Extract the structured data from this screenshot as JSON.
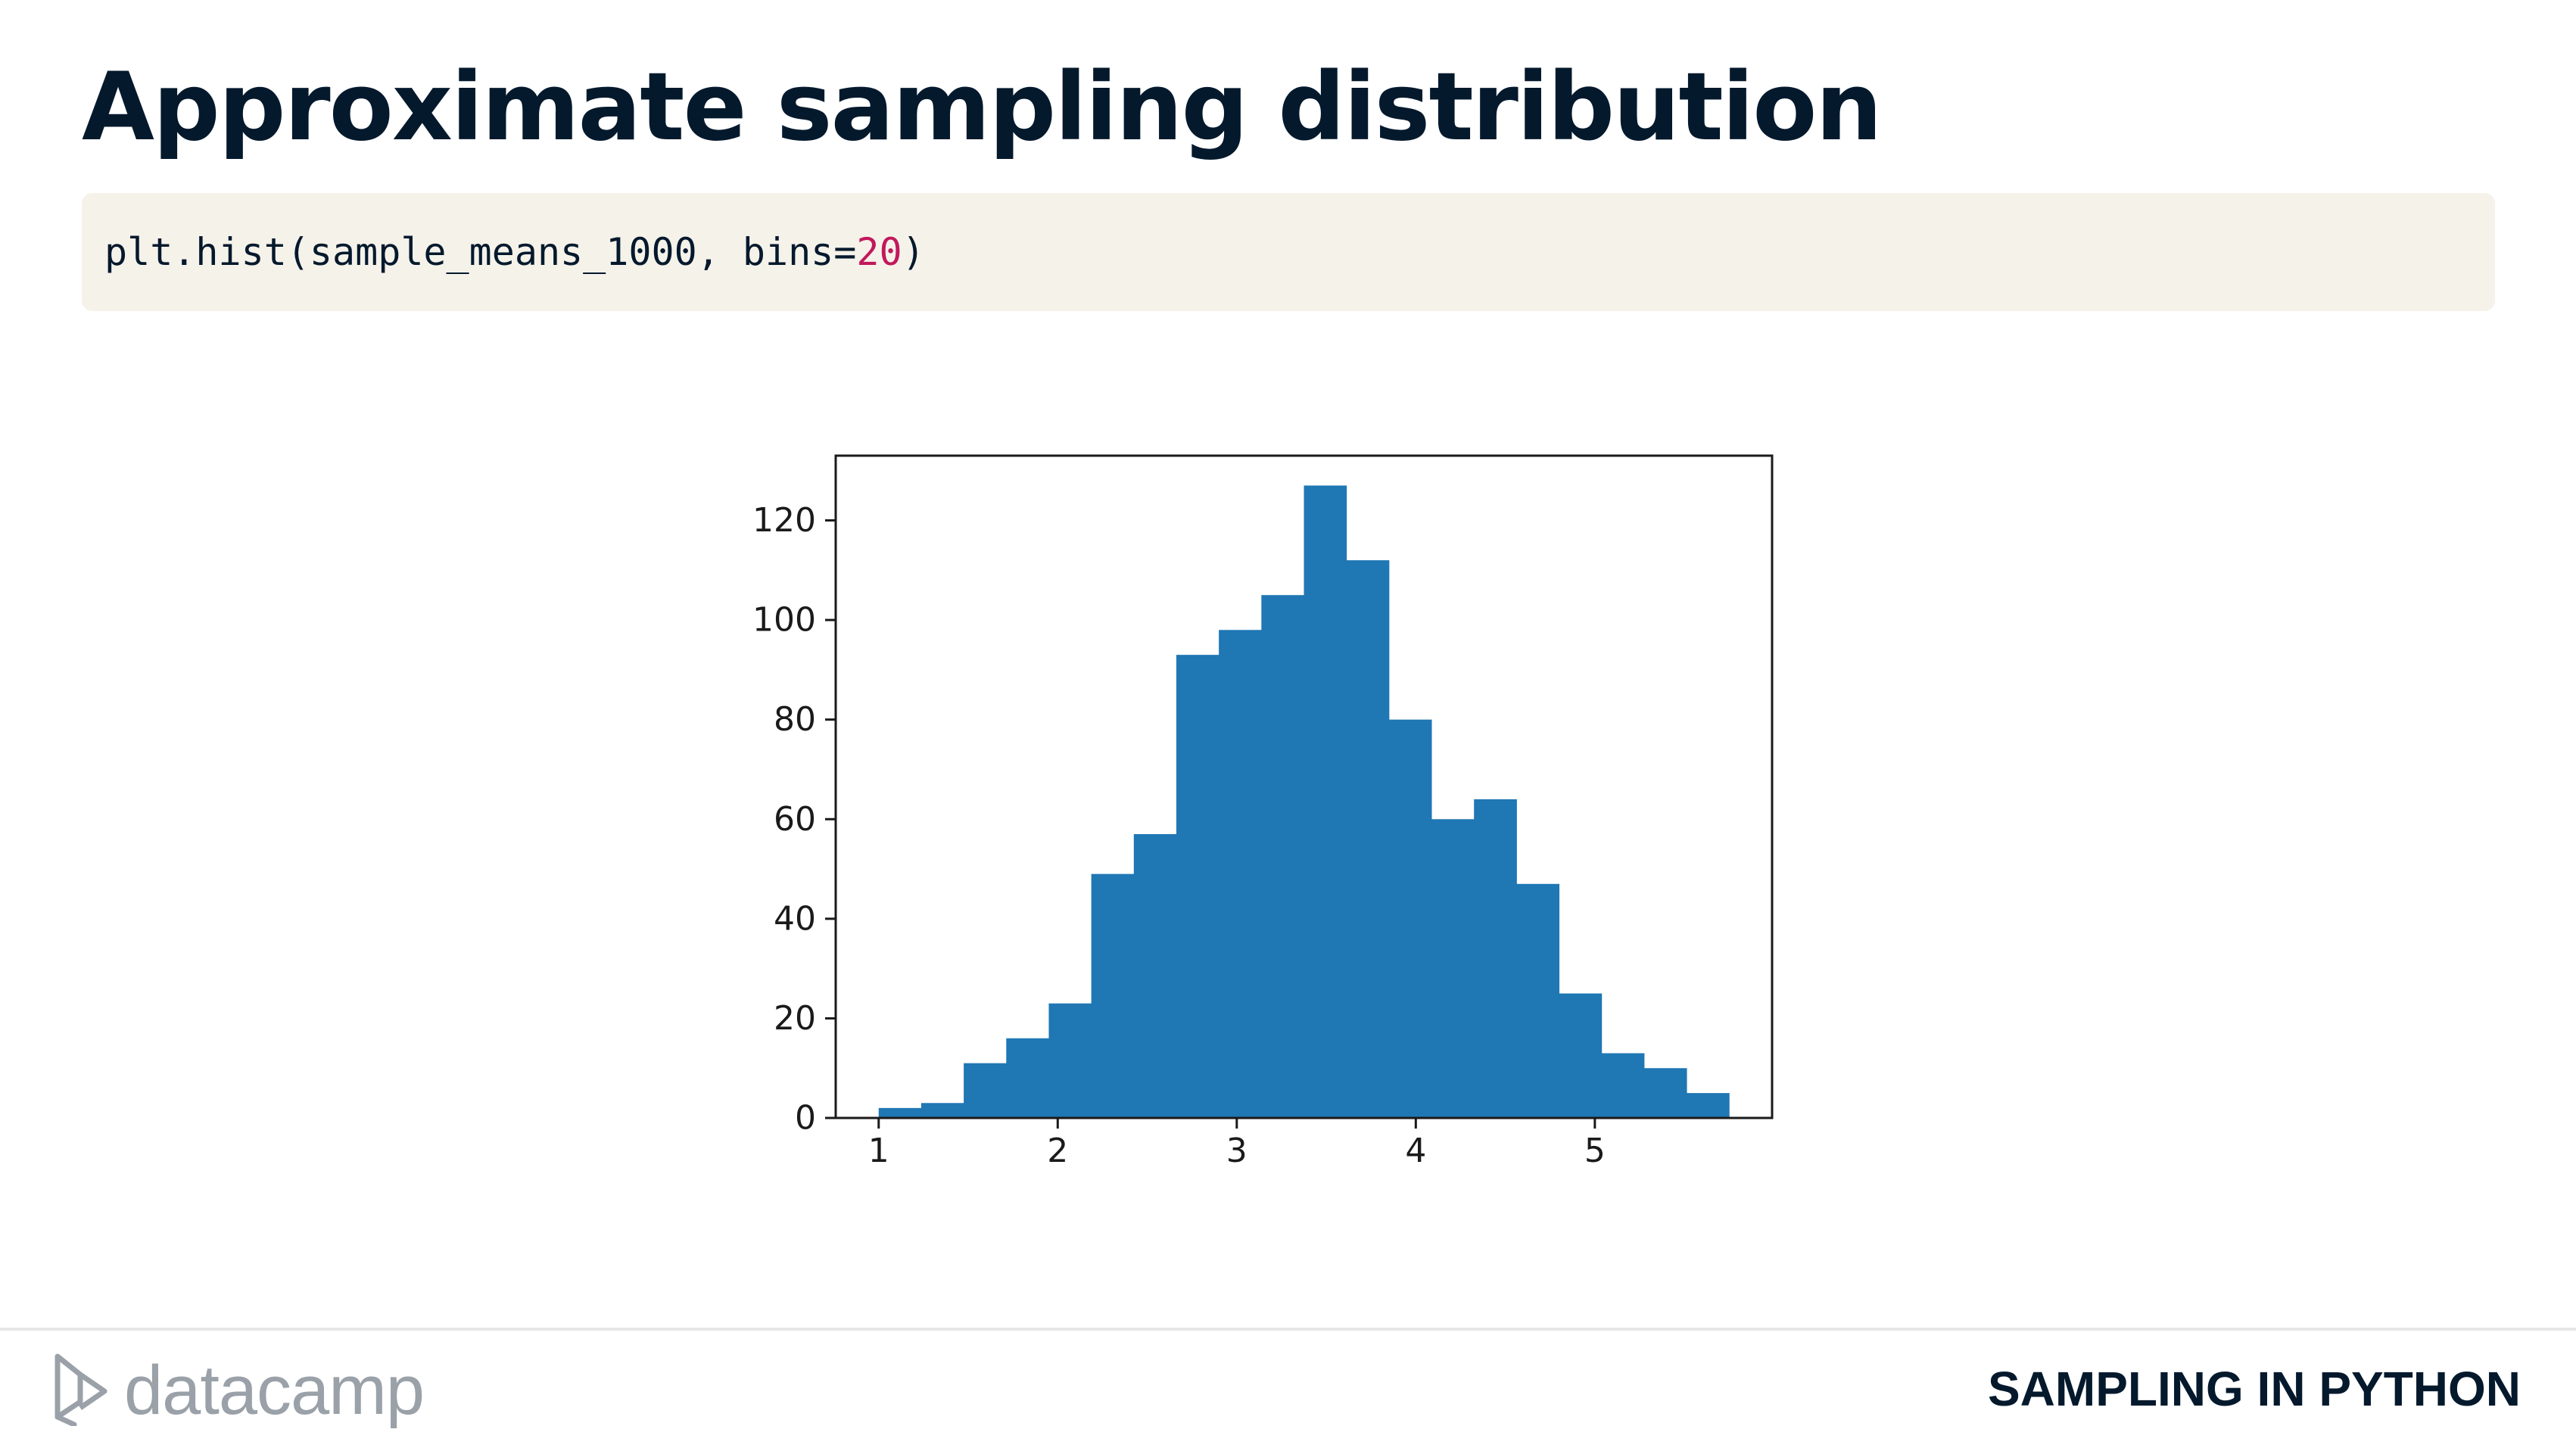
{
  "slide": {
    "title": "Approximate sampling distribution",
    "course": "SAMPLING IN PYTHON"
  },
  "logo": {
    "text": "datacamp",
    "icon": "datacamp-logo-icon"
  },
  "code": {
    "prefix": "plt.hist(sample_means_1000, bins=",
    "number": "20",
    "suffix": ")"
  },
  "colors": {
    "title": "#05192d",
    "code_background": "#f5f2ea",
    "code_number": "#c2185b",
    "bar": "#1f77b4",
    "logo": "#9aa1a8"
  },
  "chart_data": {
    "type": "bar",
    "title": "",
    "xlabel": "",
    "ylabel": "",
    "bin_edges": [
      1.0,
      1.2375,
      1.475,
      1.7125,
      1.95,
      2.1875,
      2.425,
      2.6625,
      2.9,
      3.1375,
      3.375,
      3.6125,
      3.85,
      4.0875,
      4.325,
      4.5625,
      4.8,
      5.0375,
      5.275,
      5.5125,
      5.75
    ],
    "values": [
      2,
      3,
      11,
      16,
      23,
      49,
      57,
      93,
      98,
      105,
      127,
      112,
      80,
      60,
      64,
      47,
      25,
      13,
      10,
      5
    ],
    "color": "#1f77b4",
    "xlim": [
      0.76,
      5.99
    ],
    "ylim": [
      0,
      133
    ],
    "xticks": [
      1,
      2,
      3,
      4,
      5
    ],
    "yticks": [
      0,
      20,
      40,
      60,
      80,
      100,
      120
    ],
    "grid": false,
    "legend": "none"
  }
}
